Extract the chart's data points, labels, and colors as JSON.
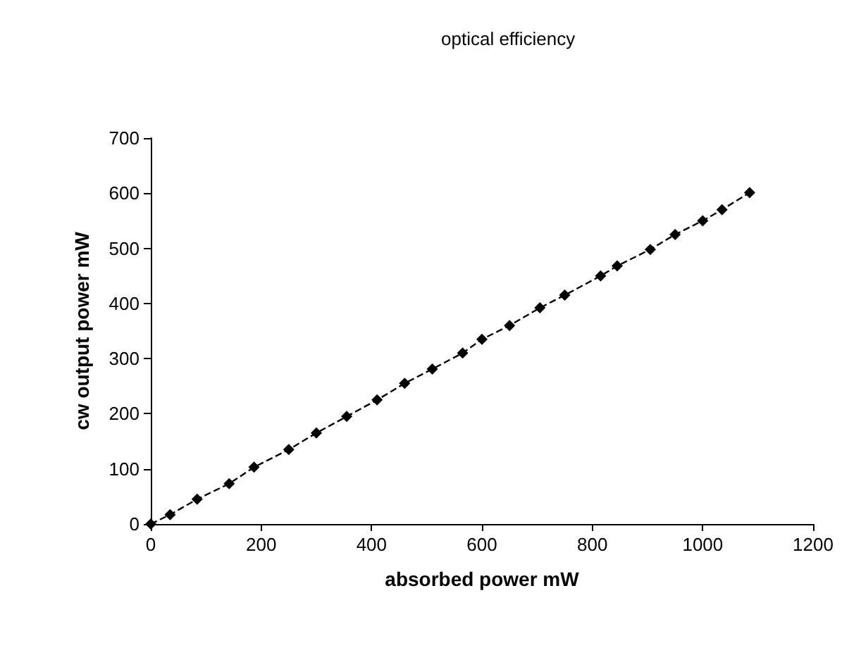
{
  "chart_data": {
    "type": "line",
    "title": "optical efficiency",
    "xlabel": "absorbed power mW",
    "ylabel": "cw output power mW",
    "x": [
      0,
      35,
      84,
      142,
      187,
      250,
      300,
      355,
      410,
      460,
      510,
      565,
      600,
      650,
      705,
      750,
      815,
      845,
      905,
      950,
      1000,
      1035,
      1085
    ],
    "series": [
      {
        "color": "#000000",
        "values": [
          0,
          17,
          45,
          73,
          103,
          135,
          165,
          195,
          225,
          255,
          281,
          310,
          335,
          360,
          392,
          415,
          450,
          468,
          498,
          525,
          550,
          570,
          601
        ]
      }
    ],
    "xlim": [
      0,
      1200
    ],
    "xticks": [
      0,
      200,
      400,
      600,
      800,
      1000,
      1200
    ],
    "ylim": [
      0,
      700
    ],
    "yticks": [
      0,
      100,
      200,
      300,
      400,
      500,
      600,
      700
    ],
    "grid": false,
    "marker": "diamond",
    "line_style": "dashed"
  }
}
